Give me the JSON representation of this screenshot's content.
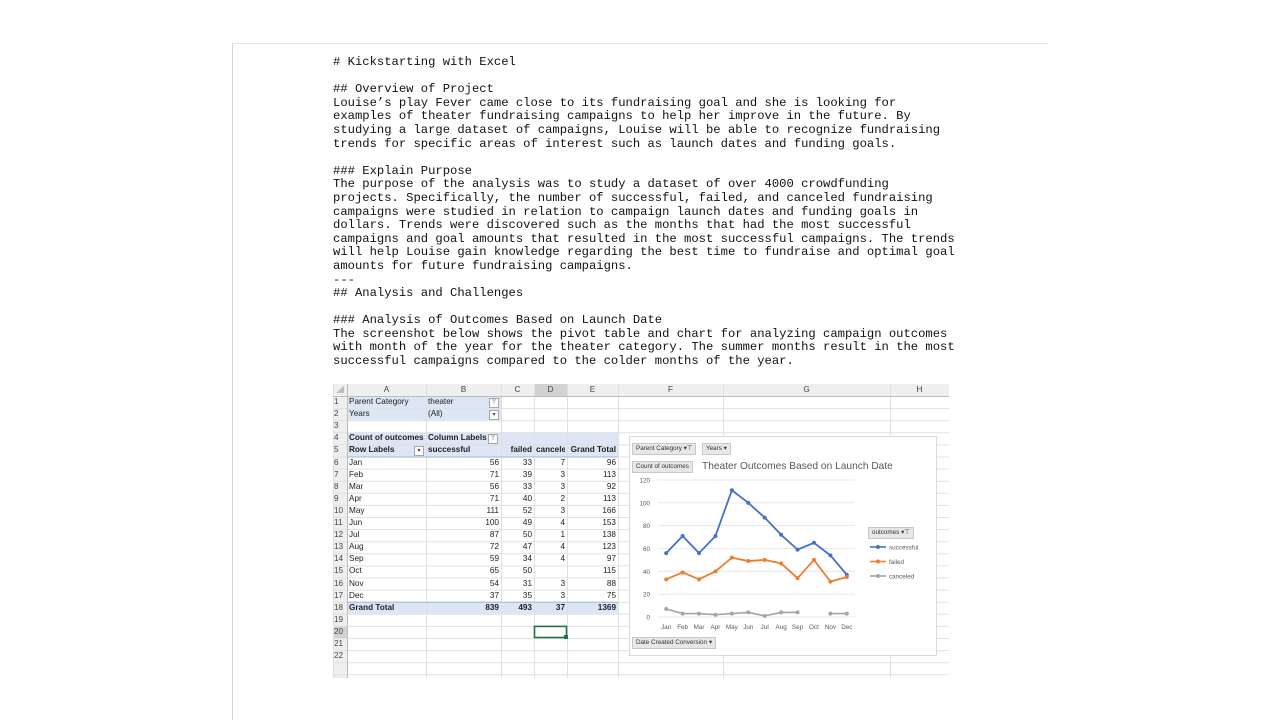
{
  "document": {
    "lines": [
      "# Kickstarting with Excel",
      "",
      "## Overview of Project",
      "Louise’s play Fever came close to its fundraising goal and she is looking for",
      "examples of theater fundraising campaigns to help her improve in the future. By",
      "studying a large dataset of campaigns, Louise will be able to recognize fundraising",
      "trends for specific areas of interest such as launch dates and funding goals.",
      "",
      "### Explain Purpose",
      "The purpose of the analysis was to study a dataset of over 4000 crowdfunding",
      "projects. Specifically, the number of successful, failed, and canceled fundraising",
      "campaigns were studied in relation to campaign launch dates and funding goals in",
      "dollars. Trends were discovered such as the months that had the most successful",
      "campaigns and goal amounts that resulted in the most successful campaigns. The trends",
      "will help Louise gain knowledge regarding the best time to fundraise and optimal goal",
      "amounts for future fundraising campaigns.",
      "---",
      "## Analysis and Challenges",
      "",
      "### Analysis of Outcomes Based on Launch Date",
      "The screenshot below shows the pivot table and chart for analyzing campaign outcomes",
      "with month of the year for the theater category. The summer months result in the most",
      "successful campaigns compared to the colder months of the year."
    ]
  },
  "spreadsheet": {
    "columns": [
      "A",
      "B",
      "C",
      "D",
      "E",
      "F",
      "G",
      "H"
    ],
    "row_numbers": [
      "1",
      "2",
      "3",
      "4",
      "5",
      "6",
      "7",
      "8",
      "9",
      "10",
      "11",
      "12",
      "13",
      "14",
      "15",
      "16",
      "17",
      "18",
      "19",
      "20",
      "21",
      "22"
    ],
    "filters": [
      {
        "label": "Parent Category",
        "value": "theater",
        "icon": "filter-icon"
      },
      {
        "label": "Years",
        "value": "(All)",
        "icon": "dropdown-icon"
      }
    ],
    "pivot": {
      "corner_label": "Count of outcomes",
      "column_labels": "Column Labels",
      "row_labels": "Row Labels",
      "headers": [
        "successful",
        "failed",
        "canceled",
        "Grand Total"
      ],
      "rows": [
        {
          "month": "Jan",
          "successful": "56",
          "failed": "33",
          "canceled": "7",
          "total": "96"
        },
        {
          "month": "Feb",
          "successful": "71",
          "failed": "39",
          "canceled": "3",
          "total": "113"
        },
        {
          "month": "Mar",
          "successful": "56",
          "failed": "33",
          "canceled": "3",
          "total": "92"
        },
        {
          "month": "Apr",
          "successful": "71",
          "failed": "40",
          "canceled": "2",
          "total": "113"
        },
        {
          "month": "May",
          "successful": "111",
          "failed": "52",
          "canceled": "3",
          "total": "166"
        },
        {
          "month": "Jun",
          "successful": "100",
          "failed": "49",
          "canceled": "4",
          "total": "153"
        },
        {
          "month": "Jul",
          "successful": "87",
          "failed": "50",
          "canceled": "1",
          "total": "138"
        },
        {
          "month": "Aug",
          "successful": "72",
          "failed": "47",
          "canceled": "4",
          "total": "123"
        },
        {
          "month": "Sep",
          "successful": "59",
          "failed": "34",
          "canceled": "4",
          "total": "97"
        },
        {
          "month": "Oct",
          "successful": "65",
          "failed": "50",
          "canceled": "",
          "total": "115"
        },
        {
          "month": "Nov",
          "successful": "54",
          "failed": "31",
          "canceled": "3",
          "total": "88"
        },
        {
          "month": "Dec",
          "successful": "37",
          "failed": "35",
          "canceled": "3",
          "total": "75"
        }
      ],
      "grand_total": {
        "label": "Grand Total",
        "successful": "839",
        "failed": "493",
        "canceled": "37",
        "total": "1369"
      }
    }
  },
  "chart_buttons": {
    "parent_category": "Parent Category",
    "years": "Years",
    "count": "Count of outcomes",
    "outcomes": "outcomes",
    "date": "Date Created Conversion"
  },
  "chart_data": {
    "type": "line",
    "title": "Theater Outcomes Based on Launch Date",
    "categories": [
      "Jan",
      "Feb",
      "Mar",
      "Apr",
      "May",
      "Jun",
      "Jul",
      "Aug",
      "Sep",
      "Oct",
      "Nov",
      "Dec"
    ],
    "series": [
      {
        "name": "successful",
        "color": "#4472c4",
        "values": [
          56,
          71,
          56,
          71,
          111,
          100,
          87,
          72,
          59,
          65,
          54,
          37
        ]
      },
      {
        "name": "failed",
        "color": "#ed7d31",
        "values": [
          33,
          39,
          33,
          40,
          52,
          49,
          50,
          47,
          34,
          50,
          31,
          35
        ]
      },
      {
        "name": "canceled",
        "color": "#a5a5a5",
        "values": [
          7,
          3,
          3,
          2,
          3,
          4,
          1,
          4,
          4,
          null,
          3,
          3
        ]
      }
    ],
    "ylim": [
      0,
      120
    ],
    "yticks": [
      0,
      20,
      40,
      60,
      80,
      100,
      120
    ],
    "grid": true,
    "legend": "right"
  }
}
